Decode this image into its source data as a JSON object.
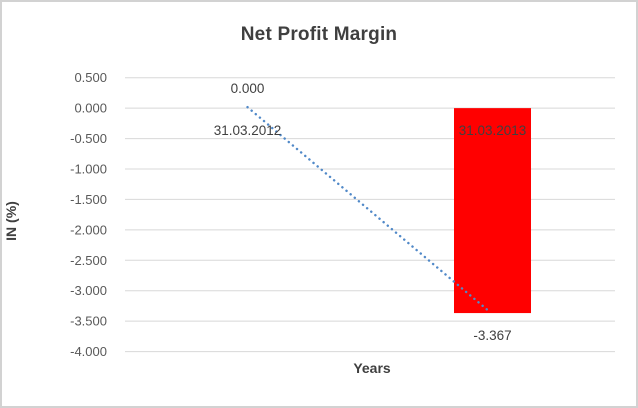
{
  "chart_data": {
    "type": "bar",
    "title": "Net Profit Margin",
    "xlabel": "Years",
    "ylabel": "IN (%)",
    "categories": [
      "31.03.2012",
      "31.03.2013"
    ],
    "values": [
      0.0,
      -3.367
    ],
    "data_labels": [
      "0.000",
      "-3.367"
    ],
    "ytick_labels": [
      "0.500",
      "0.000",
      "-0.500",
      "-1.000",
      "-1.500",
      "-2.000",
      "-2.500",
      "-3.000",
      "-3.500",
      "-4.000"
    ],
    "ytick_values": [
      0.5,
      0.0,
      -0.5,
      -1.0,
      -1.5,
      -2.0,
      -2.5,
      -3.0,
      -3.5,
      -4.0
    ],
    "ylim": [
      -4.0,
      0.5
    ],
    "grid": true,
    "legend": "none",
    "trendline": {
      "type": "linear",
      "style": "dotted",
      "from_value": 0.0,
      "to_value": -3.367
    },
    "colors": {
      "bar": "#ff0000",
      "trendline": "#5189c8",
      "gridline": "#d8d8d8",
      "tick_text": "#595959",
      "label_text": "#404040",
      "frame_border": "#d2d2d2"
    }
  }
}
